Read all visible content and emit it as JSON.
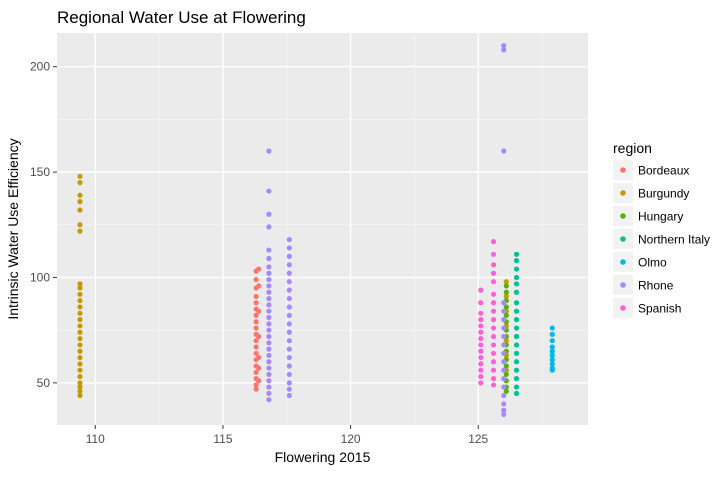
{
  "chart_data": {
    "type": "scatter",
    "title": "Regional Water Use at Flowering",
    "xlabel": "Flowering 2015",
    "ylabel": "Intrinsic Water Use Efficiency",
    "xlim": [
      108.5,
      129.3
    ],
    "ylim": [
      30,
      216
    ],
    "x_ticks": [
      110,
      115,
      120,
      125
    ],
    "y_ticks": [
      50,
      100,
      150,
      200
    ],
    "grid": true,
    "legend_title": "region",
    "legend_position": "right",
    "series": [
      {
        "name": "Bordeaux",
        "color": "#F8766D",
        "points": [
          [
            116.3,
            103
          ],
          [
            116.3,
            99
          ],
          [
            116.3,
            95
          ],
          [
            116.3,
            91
          ],
          [
            116.3,
            88
          ],
          [
            116.3,
            85
          ],
          [
            116.3,
            82
          ],
          [
            116.3,
            79
          ],
          [
            116.3,
            76
          ],
          [
            116.3,
            73
          ],
          [
            116.3,
            70
          ],
          [
            116.3,
            67
          ],
          [
            116.3,
            64
          ],
          [
            116.3,
            61
          ],
          [
            116.3,
            58
          ],
          [
            116.3,
            55
          ],
          [
            116.3,
            52
          ],
          [
            116.3,
            49
          ],
          [
            116.3,
            47
          ],
          [
            116.4,
            104
          ],
          [
            116.4,
            96
          ],
          [
            116.4,
            84
          ],
          [
            116.4,
            72
          ],
          [
            116.4,
            62
          ],
          [
            116.4,
            57
          ],
          [
            116.4,
            51
          ]
        ]
      },
      {
        "name": "Burgundy",
        "color": "#C49A00",
        "points": [
          [
            109.4,
            148
          ],
          [
            109.4,
            145
          ],
          [
            109.4,
            139
          ],
          [
            109.4,
            136
          ],
          [
            109.4,
            132
          ],
          [
            109.4,
            125
          ],
          [
            109.4,
            122
          ],
          [
            109.4,
            97
          ],
          [
            109.4,
            95
          ],
          [
            109.4,
            92
          ],
          [
            109.4,
            89
          ],
          [
            109.4,
            86
          ],
          [
            109.4,
            83
          ],
          [
            109.4,
            80
          ],
          [
            109.4,
            77
          ],
          [
            109.4,
            74
          ],
          [
            109.4,
            71
          ],
          [
            109.4,
            68
          ],
          [
            109.4,
            65
          ],
          [
            109.4,
            62
          ],
          [
            109.4,
            59
          ],
          [
            109.4,
            56
          ],
          [
            109.4,
            53
          ],
          [
            109.4,
            50
          ],
          [
            109.4,
            48
          ],
          [
            109.4,
            46
          ],
          [
            109.4,
            44
          ],
          [
            126.1,
            98
          ],
          [
            126.1,
            91
          ],
          [
            126.1,
            84
          ],
          [
            126.1,
            77
          ],
          [
            126.1,
            70
          ],
          [
            126.1,
            63
          ],
          [
            126.1,
            56
          ]
        ]
      },
      {
        "name": "Hungary",
        "color": "#53B400",
        "points": [
          [
            126.1,
            96
          ],
          [
            126.1,
            93
          ],
          [
            126.1,
            89
          ],
          [
            126.1,
            86
          ],
          [
            126.1,
            82
          ],
          [
            126.1,
            79
          ],
          [
            126.1,
            75
          ],
          [
            126.1,
            72
          ],
          [
            126.1,
            68
          ],
          [
            126.1,
            65
          ],
          [
            126.1,
            61
          ],
          [
            126.1,
            58
          ],
          [
            126.1,
            54
          ],
          [
            126.1,
            51
          ],
          [
            126.1,
            48
          ],
          [
            126.1,
            46
          ]
        ]
      },
      {
        "name": "Northern Italy",
        "color": "#00C094",
        "points": [
          [
            126.5,
            111
          ],
          [
            126.5,
            108
          ],
          [
            126.5,
            104
          ],
          [
            126.5,
            100
          ],
          [
            126.5,
            97
          ],
          [
            126.5,
            93
          ],
          [
            126.5,
            88
          ],
          [
            126.5,
            84
          ],
          [
            126.5,
            80
          ],
          [
            126.5,
            76
          ],
          [
            126.5,
            72
          ],
          [
            126.5,
            68
          ],
          [
            126.5,
            64
          ],
          [
            126.5,
            60
          ],
          [
            126.5,
            56
          ],
          [
            126.5,
            52
          ],
          [
            126.5,
            48
          ],
          [
            126.5,
            45
          ]
        ]
      },
      {
        "name": "Olmo",
        "color": "#00B6EB",
        "points": [
          [
            127.9,
            76
          ],
          [
            127.9,
            73
          ],
          [
            127.9,
            70
          ],
          [
            127.9,
            67
          ],
          [
            127.9,
            65
          ],
          [
            127.9,
            63
          ],
          [
            127.9,
            61
          ],
          [
            127.9,
            59
          ],
          [
            127.9,
            57
          ],
          [
            127.9,
            56
          ]
        ]
      },
      {
        "name": "Rhone",
        "color": "#A58AFF",
        "points": [
          [
            116.8,
            160
          ],
          [
            116.8,
            141
          ],
          [
            116.8,
            130
          ],
          [
            116.8,
            124
          ],
          [
            116.8,
            113
          ],
          [
            116.8,
            109
          ],
          [
            116.8,
            105
          ],
          [
            116.8,
            102
          ],
          [
            116.8,
            99
          ],
          [
            116.8,
            96
          ],
          [
            116.8,
            93
          ],
          [
            116.8,
            90
          ],
          [
            116.8,
            87
          ],
          [
            116.8,
            84
          ],
          [
            116.8,
            81
          ],
          [
            116.8,
            78
          ],
          [
            116.8,
            75
          ],
          [
            116.8,
            72
          ],
          [
            116.8,
            69
          ],
          [
            116.8,
            66
          ],
          [
            116.8,
            63
          ],
          [
            116.8,
            60
          ],
          [
            116.8,
            57
          ],
          [
            116.8,
            54
          ],
          [
            116.8,
            51
          ],
          [
            116.8,
            48
          ],
          [
            116.8,
            45
          ],
          [
            116.8,
            42
          ],
          [
            117.6,
            118
          ],
          [
            117.6,
            114
          ],
          [
            117.6,
            110
          ],
          [
            117.6,
            106
          ],
          [
            117.6,
            102
          ],
          [
            117.6,
            98
          ],
          [
            117.6,
            94
          ],
          [
            117.6,
            90
          ],
          [
            117.6,
            86
          ],
          [
            117.6,
            82
          ],
          [
            117.6,
            78
          ],
          [
            117.6,
            74
          ],
          [
            117.6,
            70
          ],
          [
            117.6,
            66
          ],
          [
            117.6,
            62
          ],
          [
            117.6,
            58
          ],
          [
            117.6,
            54
          ],
          [
            117.6,
            50
          ],
          [
            117.6,
            47
          ],
          [
            117.6,
            44
          ],
          [
            126.0,
            210
          ],
          [
            126.0,
            208
          ],
          [
            126.0,
            160
          ],
          [
            126.0,
            88
          ],
          [
            126.0,
            84
          ],
          [
            126.0,
            80
          ],
          [
            126.0,
            76
          ],
          [
            126.0,
            72
          ],
          [
            126.0,
            68
          ],
          [
            126.0,
            64
          ],
          [
            126.0,
            60
          ],
          [
            126.0,
            56
          ],
          [
            126.0,
            52
          ],
          [
            126.0,
            48
          ],
          [
            126.0,
            44
          ],
          [
            126.0,
            40
          ],
          [
            126.0,
            37
          ],
          [
            126.0,
            35
          ]
        ]
      },
      {
        "name": "Spanish",
        "color": "#FB61D7",
        "points": [
          [
            125.1,
            94
          ],
          [
            125.1,
            88
          ],
          [
            125.1,
            83
          ],
          [
            125.1,
            80
          ],
          [
            125.1,
            77
          ],
          [
            125.1,
            74
          ],
          [
            125.1,
            71
          ],
          [
            125.1,
            68
          ],
          [
            125.1,
            65
          ],
          [
            125.1,
            62
          ],
          [
            125.1,
            59
          ],
          [
            125.1,
            56
          ],
          [
            125.1,
            53
          ],
          [
            125.1,
            50
          ],
          [
            125.6,
            117
          ],
          [
            125.6,
            111
          ],
          [
            125.6,
            106
          ],
          [
            125.6,
            102
          ],
          [
            125.6,
            98
          ],
          [
            125.6,
            92
          ],
          [
            125.6,
            88
          ],
          [
            125.6,
            84
          ],
          [
            125.6,
            80
          ],
          [
            125.6,
            76
          ],
          [
            125.6,
            72
          ],
          [
            125.6,
            68
          ],
          [
            125.6,
            64
          ],
          [
            125.6,
            60
          ],
          [
            125.6,
            56
          ],
          [
            125.6,
            52
          ],
          [
            125.6,
            49
          ]
        ]
      }
    ]
  }
}
